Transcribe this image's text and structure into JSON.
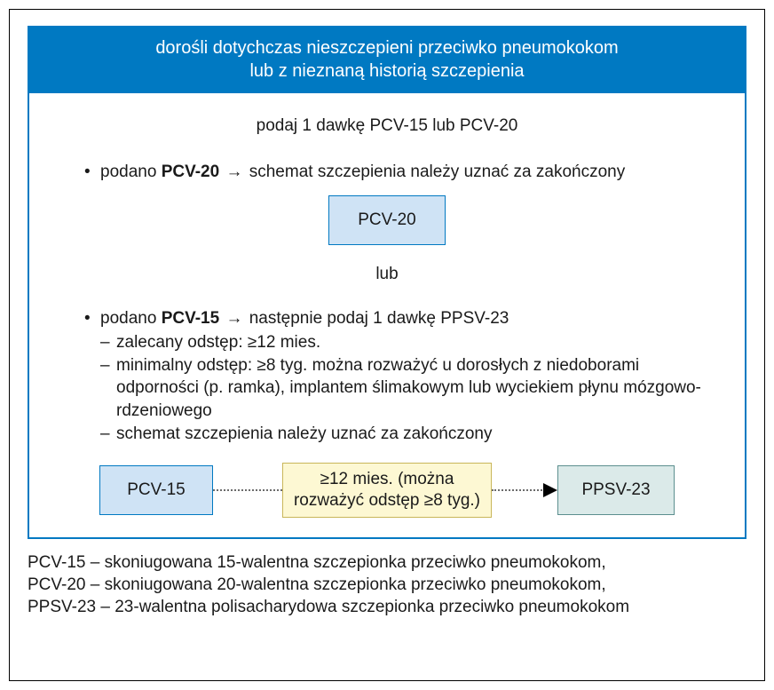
{
  "colors": {
    "panel_border": "#0079c2",
    "header_bg": "#0079c2",
    "header_fg": "#ffffff",
    "pcv20_bg": "#cfe3f5",
    "pcv20_border": "#0079c2",
    "pcv15_bg": "#cfe3f5",
    "pcv15_border": "#0079c2",
    "interval_bg": "#fdf8d3",
    "interval_border": "#c9b65a",
    "ppsv23_bg": "#dbeae9",
    "ppsv23_border": "#5c8f8f"
  },
  "header": {
    "line1": "dorośli dotychczas nieszczepieni przeciwko pneumokokom",
    "line2": "lub z nieznaną historią szczepienia"
  },
  "instruction": "podaj 1 dawkę PCV-15 lub PCV-20",
  "opt1": {
    "prefix": "podano ",
    "bold": "PCV-20",
    "arrow": " → ",
    "rest": "schemat szczepienia należy uznać za zakończony",
    "box": "PCV-20"
  },
  "or_label": "lub",
  "opt2": {
    "prefix": "podano ",
    "bold": "PCV-15",
    "arrow": " → ",
    "rest": "następnie podaj 1 dawkę PPSV-23",
    "sub1": "zalecany odstęp: ≥12 mies.",
    "sub2": "minimalny odstęp: ≥8 tyg. można rozważyć u dorosłych z niedoborami odporności (p. ramka), implantem ślimakowym lub wyciekiem płynu mózgowo-rdzeniowego",
    "sub3": "schemat szczepienia należy uznać za zakończony"
  },
  "flow": {
    "left_box": "PCV-15",
    "mid_line1": "≥12 mies. (można",
    "mid_line2": "rozważyć odstęp ≥8 tyg.)",
    "right_box": "PPSV-23"
  },
  "legend": {
    "l1": "PCV-15 – skoniugowana 15-walentna szczepionka przeciwko pneumokokom,",
    "l2": "PCV-20 – skoniugowana 20-walentna szczepionka przeciwko pneumokokom,",
    "l3": "PPSV-23 – 23-walentna polisacharydowa szczepionka przeciwko pneumokokom"
  }
}
